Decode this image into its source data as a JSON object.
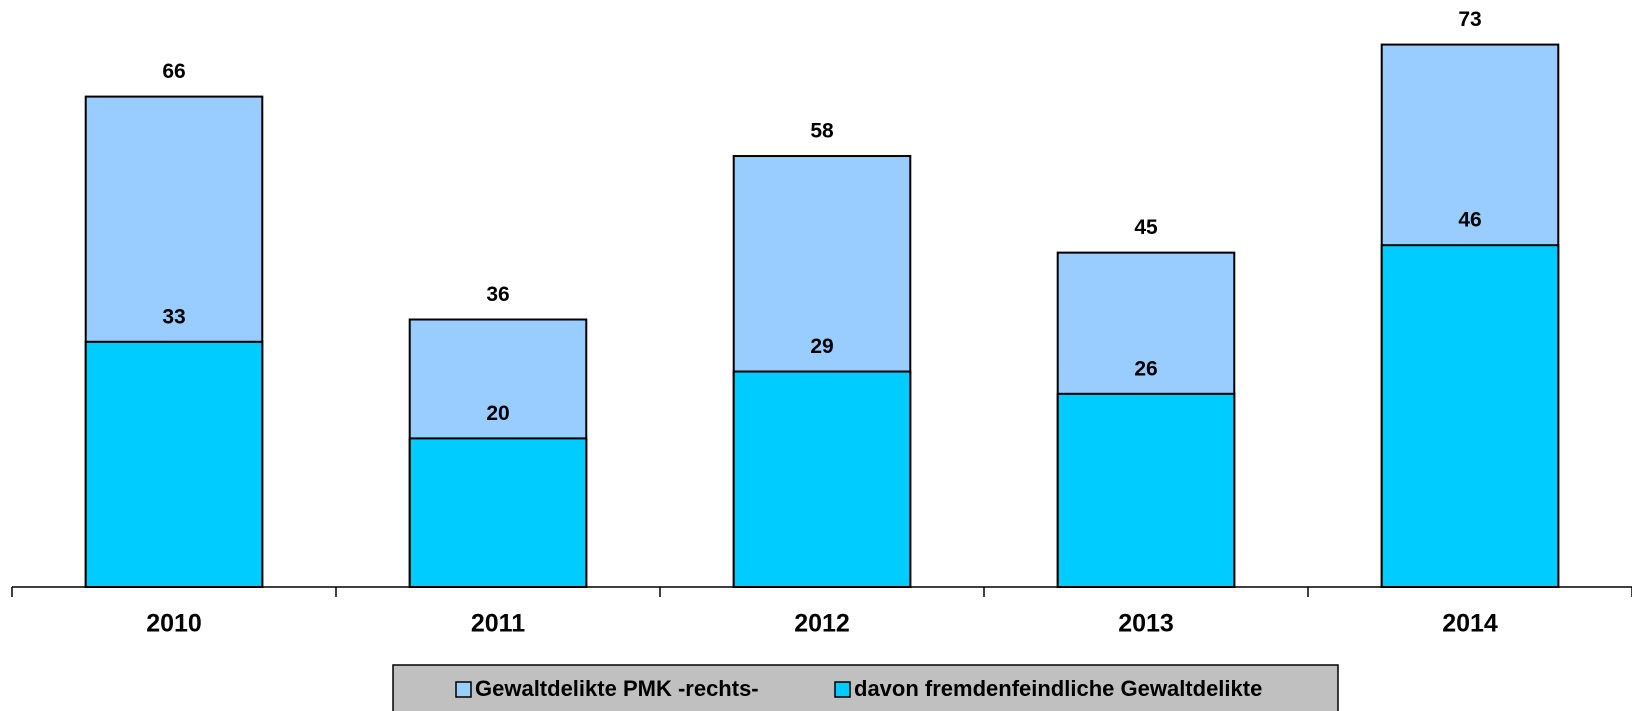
{
  "chart_data": {
    "type": "bar",
    "overlap": true,
    "categories": [
      "2010",
      "2011",
      "2012",
      "2013",
      "2014"
    ],
    "series": [
      {
        "name": "Gewaltdelikte PMK -rechts-",
        "color": "#99ccff",
        "values": [
          66,
          36,
          58,
          45,
          73
        ]
      },
      {
        "name": "davon fremdenfeindliche Gewaltdelikte",
        "color": "#00ccff",
        "values": [
          33,
          20,
          29,
          26,
          46
        ]
      }
    ],
    "ylim": [
      0,
      79
    ],
    "legend": "bottom"
  }
}
